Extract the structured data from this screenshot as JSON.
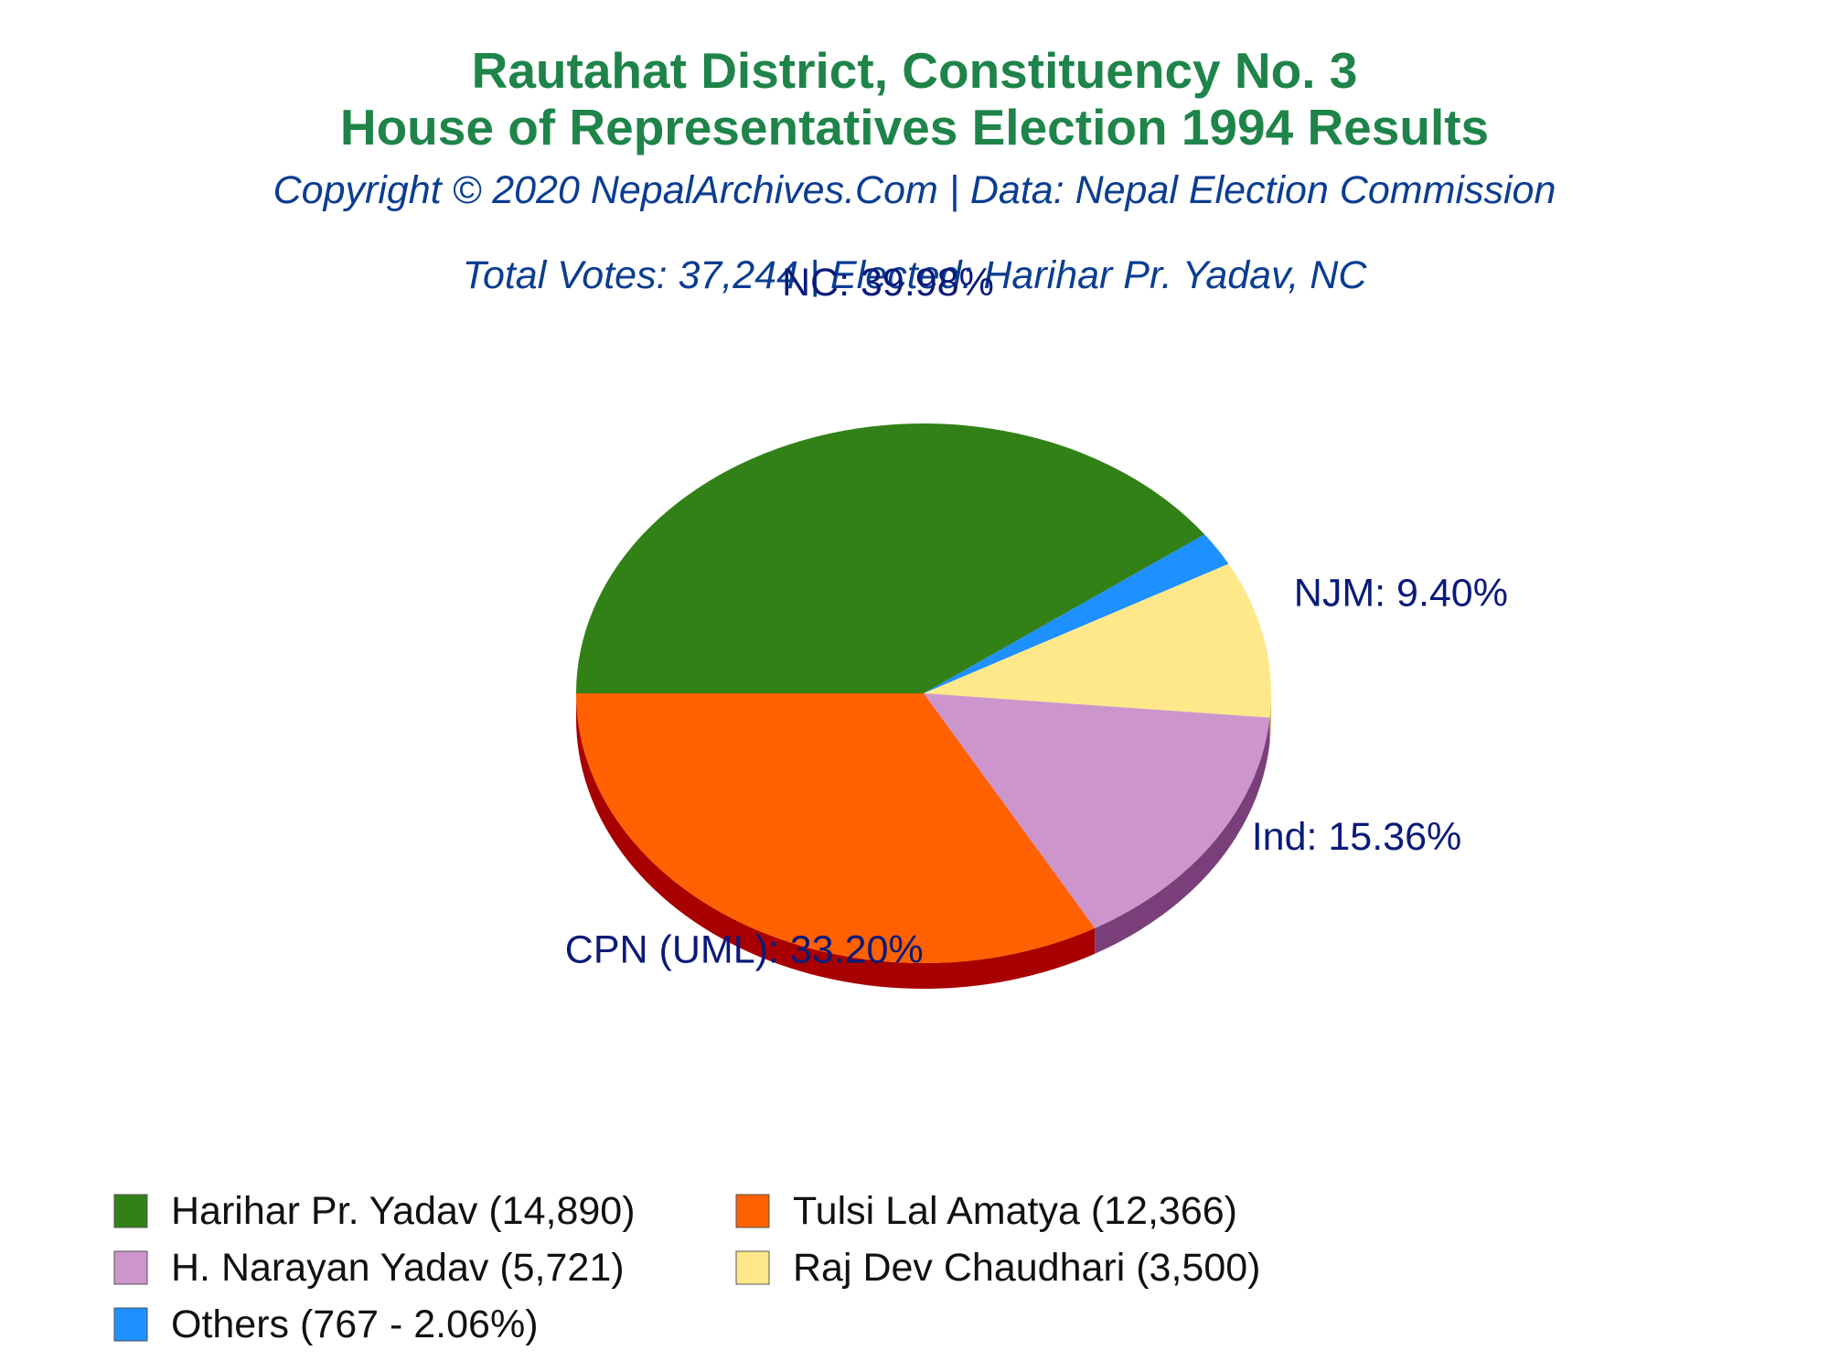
{
  "header": {
    "title_line1": "Rautahat District, Constituency No. 3",
    "title_line2": "House of Representatives Election 1994 Results",
    "copyright": "Copyright © 2020 NepalArchives.Com | Data: Nepal Election Commission",
    "summary": "Total Votes: 37,244 | Elected: Harihar Pr. Yadav, NC"
  },
  "chart_data": {
    "type": "pie",
    "title": "Rautahat District, Constituency No. 3 House of Representatives Election 1994 Results",
    "legend_position": "bottom",
    "slices": [
      {
        "party": "NC",
        "label": "NC: 39.98%",
        "percent": 39.98,
        "candidate": "Harihar Pr. Yadav (14,890)",
        "votes": 14890,
        "color": "#328117",
        "side_color": "#1f5a0c"
      },
      {
        "party": "Others",
        "label": "",
        "percent": 2.06,
        "candidate": "Others (767 - 2.06%)",
        "votes": 767,
        "color": "#1e90ff",
        "side_color": "#1466b8"
      },
      {
        "party": "NJM",
        "label": "NJM: 9.40%",
        "percent": 9.4,
        "candidate": "Raj Dev Chaudhari (3,500)",
        "votes": 3500,
        "color": "#ffe88a",
        "side_color": "#c9b35a"
      },
      {
        "party": "Ind",
        "label": "Ind: 15.36%",
        "percent": 15.36,
        "candidate": "H. Narayan Yadav (5,721)",
        "votes": 5721,
        "color": "#cc96cc",
        "side_color": "#7a3f7a"
      },
      {
        "party": "CPN (UML)",
        "label": "CPN (UML): 33.20%",
        "percent": 33.2,
        "candidate": "Tulsi Lal Amatya (12,366)",
        "votes": 12366,
        "color": "#ff6000",
        "side_color": "#a80000"
      }
    ]
  },
  "legend": {
    "items": [
      {
        "text": "Harihar Pr. Yadav (14,890)",
        "color": "#328117"
      },
      {
        "text": "Tulsi Lal Amatya (12,366)",
        "color": "#ff6000"
      },
      {
        "text": "H. Narayan Yadav (5,721)",
        "color": "#cc96cc"
      },
      {
        "text": "Raj Dev Chaudhari (3,500)",
        "color": "#ffe88a"
      },
      {
        "text": "Others (767 - 2.06%)",
        "color": "#1e90ff"
      }
    ]
  }
}
